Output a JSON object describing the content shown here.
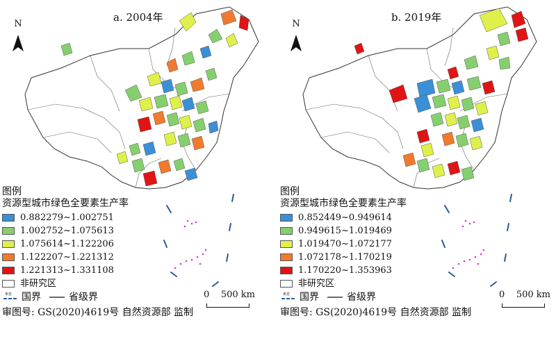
{
  "panels": [
    {
      "title": "a. 2004年",
      "north": "N",
      "legend": {
        "title": "图例",
        "subtitle": "资源型城市绿色全要素生产率",
        "classes": [
          {
            "range": "0.882279~1.002751",
            "color": "#3b8fd6"
          },
          {
            "range": "1.002752~1.075613",
            "color": "#86cf6e"
          },
          {
            "range": "1.075614~1.122206",
            "color": "#e0f04a"
          },
          {
            "range": "1.122207~1.221312",
            "color": "#f07a2e"
          },
          {
            "range": "1.221313~1.331108",
            "color": "#e01414"
          }
        ],
        "non_study": "非研究区",
        "border_national": "国界",
        "border_province": "省级界",
        "undetermined": "未定"
      },
      "scale": {
        "zero": "0",
        "label": "500 km"
      },
      "approval": "审图号: GS(2020)4619号 自然资源部 监制"
    },
    {
      "title": "b. 2019年",
      "north": "N",
      "legend": {
        "title": "图例",
        "subtitle": "资源型城市绿色全要素生产率",
        "classes": [
          {
            "range": "0.852449~0.949614",
            "color": "#3b8fd6"
          },
          {
            "range": "0.949615~1.019469",
            "color": "#86cf6e"
          },
          {
            "range": "1.019470~1.072177",
            "color": "#e0f04a"
          },
          {
            "range": "1.072178~1.170219",
            "color": "#f07a2e"
          },
          {
            "range": "1.170220~1.353963",
            "color": "#e01414"
          }
        ],
        "non_study": "非研究区",
        "border_national": "国界",
        "border_province": "省级界",
        "undetermined": "未定"
      },
      "scale": {
        "zero": "0",
        "label": "500 km"
      },
      "approval": "审图号: GS(2020)4619号 自然资源部 监制"
    }
  ]
}
